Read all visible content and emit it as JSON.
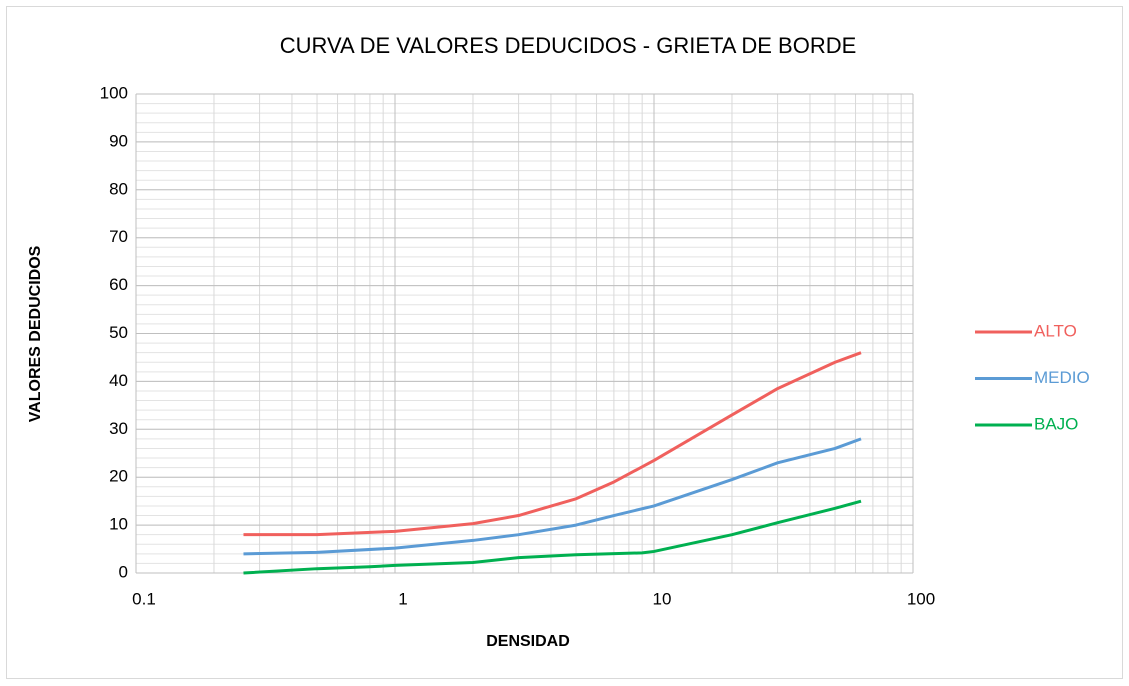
{
  "chart_data": {
    "type": "line",
    "title": "CURVA DE VALORES DEDUCIDOS - GRIETA DE BORDE",
    "x_label": "DENSIDAD",
    "y_label": "VALORES DEDUCIDOS",
    "x_log": true,
    "grid": true,
    "minor_grid": true,
    "legend": "right",
    "xlim": [
      0.1,
      100
    ],
    "xticks": [
      0.1,
      1,
      10,
      100
    ],
    "ylim": [
      0,
      100
    ],
    "yticks": [
      0,
      10,
      20,
      30,
      40,
      50,
      60,
      70,
      80,
      90,
      100
    ],
    "series": [
      {
        "name": "ALTO",
        "color": "#f0605d",
        "x": [
          0.26,
          0.5,
          1,
          2,
          3,
          5,
          7,
          10,
          20,
          30,
          50,
          63
        ],
        "values": [
          8,
          8,
          8.7,
          10.3,
          12,
          15.5,
          19,
          23.5,
          33,
          38.5,
          44,
          46
        ]
      },
      {
        "name": "MEDIO",
        "color": "#5b9bd5",
        "x": [
          0.26,
          0.5,
          1,
          2,
          3,
          5,
          7,
          10,
          20,
          30,
          50,
          63
        ],
        "values": [
          4,
          4.3,
          5.2,
          6.8,
          8,
          10,
          12,
          14,
          19.5,
          23,
          26,
          28
        ]
      },
      {
        "name": "BAJO",
        "color": "#00b050",
        "x": [
          0.26,
          0.5,
          0.8,
          1,
          2,
          3,
          5,
          9,
          10,
          20,
          30,
          50,
          63
        ],
        "values": [
          0,
          0.9,
          1.3,
          1.6,
          2.2,
          3.2,
          3.8,
          4.2,
          4.5,
          8,
          10.5,
          13.5,
          15
        ]
      }
    ]
  }
}
